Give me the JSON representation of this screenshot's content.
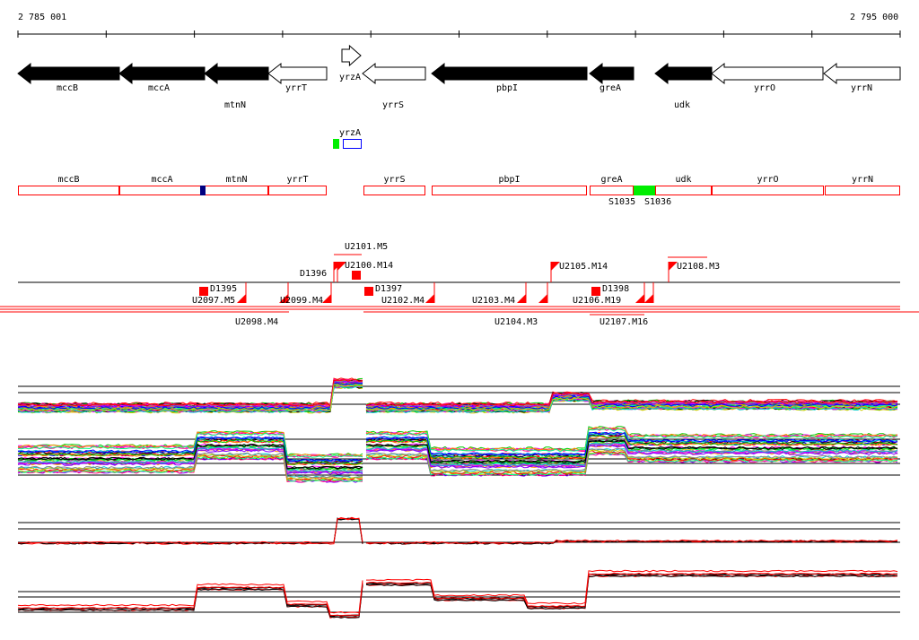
{
  "ruler": {
    "start": "2 785 001",
    "end": "2 795 000"
  },
  "genes": [
    {
      "name": "mccB",
      "strand": "-",
      "fill": "black"
    },
    {
      "name": "mccA",
      "strand": "-",
      "fill": "black"
    },
    {
      "name": "mtnN",
      "strand": "-",
      "fill": "black"
    },
    {
      "name": "yrrT",
      "strand": "-",
      "fill": "white"
    },
    {
      "name": "yrzA",
      "strand": "+",
      "fill": "white"
    },
    {
      "name": "yrrS",
      "strand": "-",
      "fill": "white"
    },
    {
      "name": "pbpI",
      "strand": "-",
      "fill": "black"
    },
    {
      "name": "greA",
      "strand": "-",
      "fill": "black"
    },
    {
      "name": "udk",
      "strand": "-",
      "fill": "black"
    },
    {
      "name": "yrrO",
      "strand": "-",
      "fill": "white"
    },
    {
      "name": "yrrN",
      "strand": "-",
      "fill": "white"
    }
  ],
  "small_track": {
    "label": "yrzA"
  },
  "operon_boxes": [
    "mccB",
    "mccA",
    "mtnN",
    "yrrT",
    "yrrS",
    "pbpI",
    "greA",
    "udk",
    "yrrO",
    "yrrN"
  ],
  "operon_marks": [
    "S1035",
    "S1036"
  ],
  "segments_above": [
    "U2100.M14",
    "U2101.M5",
    "D1396",
    "U2105.M14",
    "U2108.M3"
  ],
  "segments_below": [
    "D1395",
    "U2097.M5",
    "U2098.M4",
    "U2099.M4",
    "D1397",
    "U2102.M4",
    "U2103.M4",
    "U2104.M3",
    "D1398",
    "U2106.M19",
    "U2107.M16"
  ],
  "colors": {
    "gene": "#000000",
    "box": "#ff0000",
    "segment": "#ff0000",
    "green": "#00ee00",
    "blue": "#000080"
  }
}
